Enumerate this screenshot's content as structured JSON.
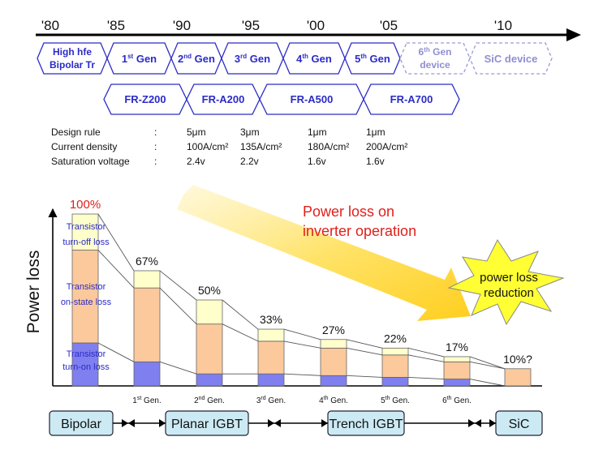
{
  "timeline": {
    "years": [
      "'80",
      "'85",
      "'90",
      "'95",
      "'00",
      "'05",
      "'10"
    ]
  },
  "generations": [
    {
      "text": "High hfe",
      "text2": "Bipolar Tr",
      "future": false
    },
    {
      "text": "1",
      "sup": "st",
      "text2": " Gen",
      "future": false
    },
    {
      "text": "2",
      "sup": "nd",
      "text2": " Gen",
      "future": false
    },
    {
      "text": "3",
      "sup": "rd",
      "text2": " Gen",
      "future": false
    },
    {
      "text": "4",
      "sup": "th",
      "text2": " Gen",
      "future": false
    },
    {
      "text": "5",
      "sup": "th",
      "text2": " Gen",
      "future": false
    },
    {
      "text": "6",
      "sup": "th",
      "text2": " Gen",
      "text3": "device",
      "future": true
    },
    {
      "text": "SiC device",
      "future": true
    }
  ],
  "products": [
    "FR-Z200",
    "FR-A200",
    "FR-A500",
    "FR-A700"
  ],
  "specs": {
    "rows": [
      {
        "label": "Design rule",
        "colon": ":",
        "values": [
          "5μm",
          "3μm",
          "1μm",
          "1μm"
        ]
      },
      {
        "label": "Current density",
        "colon": ":",
        "values": [
          "100A/cm²",
          "135A/cm²",
          "180A/cm²",
          "200A/cm²"
        ]
      },
      {
        "label": "Saturation voltage",
        "colon": ":",
        "values": [
          "2.4v",
          "2.2v",
          "1.6v",
          "1.6v"
        ]
      }
    ]
  },
  "chart": {
    "ylabel": "Power  loss",
    "segment_labels": [
      {
        "line1": "Transistor",
        "line2": "turn-off loss"
      },
      {
        "line1": "Transistor",
        "line2": "on-state loss"
      },
      {
        "line1": "Transistor",
        "line2": "turn-on loss"
      }
    ],
    "arrow_text": {
      "line1": "Power loss on",
      "line2": "inverter operation"
    },
    "burst_text": {
      "line1": "power  loss",
      "line2": "reduction"
    },
    "colors": {
      "turn_off": "#ffffcc",
      "on_state": "#fbc99b",
      "turn_on": "#7f7fef",
      "red": "#e0201b",
      "blue": "#2b2bc8"
    }
  },
  "chart_data": {
    "type": "bar",
    "categories": [
      "",
      "1st Gen.",
      "2nd Gen.",
      "3rd Gen.",
      "4th Gen.",
      "5th Gen.",
      "6th Gen.",
      ""
    ],
    "total_labels": [
      "100%",
      "67%",
      "50%",
      "33%",
      "27%",
      "22%",
      "17%",
      "10%?"
    ],
    "series": [
      {
        "name": "Transistor turn-off loss",
        "values": [
          21,
          10,
          14,
          7,
          5,
          4,
          3,
          0
        ]
      },
      {
        "name": "Transistor on-state loss",
        "values": [
          54,
          43,
          29,
          19,
          16,
          13,
          10,
          10
        ]
      },
      {
        "name": "Transistor turn-on loss",
        "values": [
          25,
          14,
          7,
          7,
          6,
          5,
          4,
          0
        ]
      }
    ],
    "ylim": [
      0,
      100
    ]
  },
  "eras": [
    {
      "label": "Bipolar"
    },
    {
      "label": "Planar IGBT"
    },
    {
      "label": "Trench IGBT"
    },
    {
      "label": "SiC"
    }
  ]
}
